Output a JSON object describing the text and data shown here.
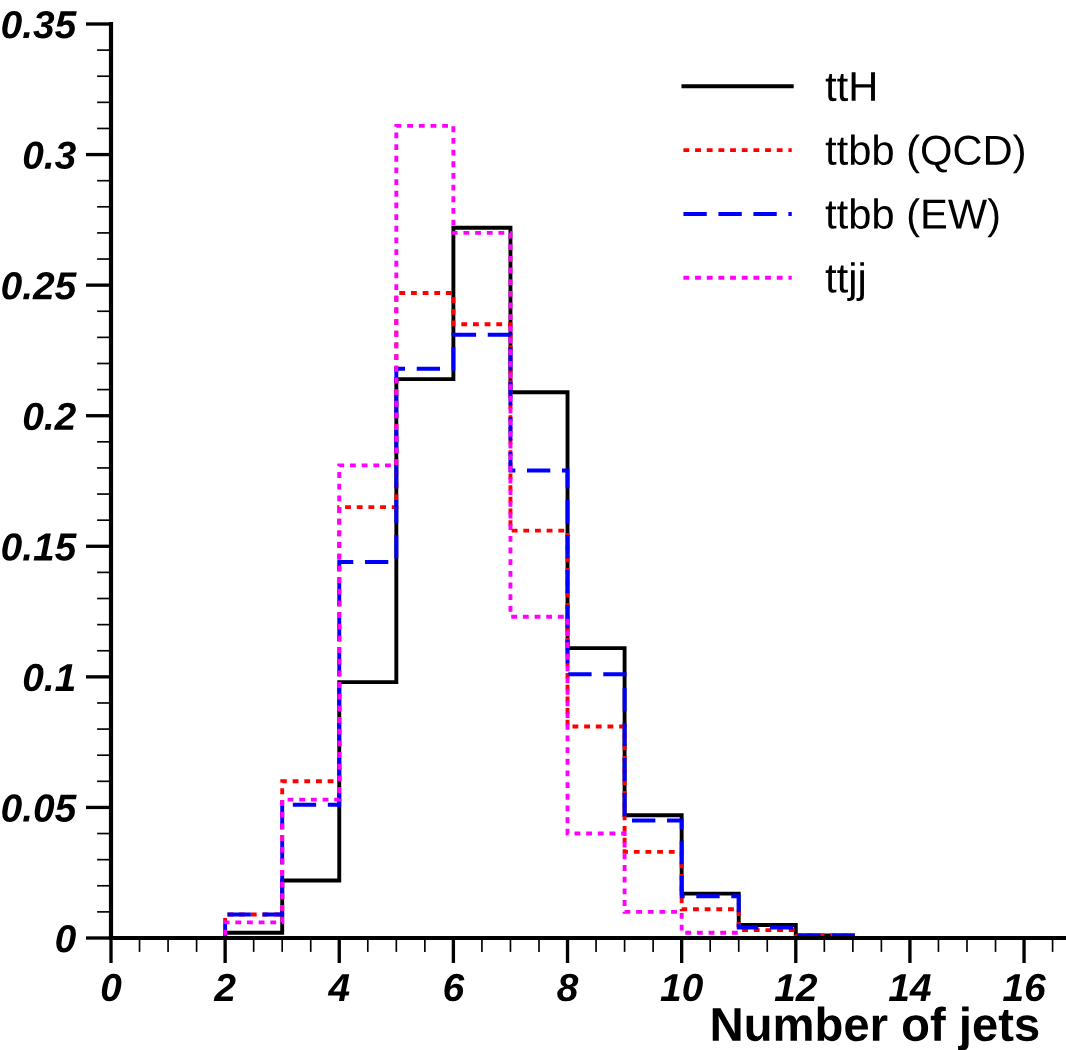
{
  "chart_data": {
    "type": "histogram",
    "xlabel": "Number of jets",
    "bins": [
      0,
      1,
      2,
      3,
      4,
      5,
      6,
      7,
      8,
      9,
      10,
      11,
      12,
      13,
      14,
      15,
      16
    ],
    "series": [
      {
        "name": "ttH",
        "color": "#000000",
        "line_style": "solid",
        "values": [
          0,
          0,
          0.002,
          0.022,
          0.098,
          0.214,
          0.272,
          0.209,
          0.111,
          0.047,
          0.017,
          0.005,
          0.001,
          0,
          0,
          0
        ]
      },
      {
        "name": "ttbb (QCD)",
        "color": "#ff0000",
        "line_style": "dotted",
        "values": [
          0,
          0,
          0.009,
          0.06,
          0.165,
          0.247,
          0.235,
          0.156,
          0.081,
          0.033,
          0.011,
          0.003,
          0.001,
          0,
          0,
          0
        ]
      },
      {
        "name": "ttbb (EW)",
        "color": "#0000ff",
        "line_style": "dashed",
        "values": [
          0,
          0,
          0.009,
          0.051,
          0.144,
          0.218,
          0.231,
          0.179,
          0.101,
          0.045,
          0.016,
          0.004,
          0.001,
          0,
          0,
          0
        ]
      },
      {
        "name": "ttjj",
        "color": "#ff00ff",
        "line_style": "dotted",
        "values": [
          0,
          0,
          0.006,
          0.053,
          0.181,
          0.311,
          0.27,
          0.123,
          0.04,
          0.01,
          0.002,
          0,
          0,
          0,
          0,
          0
        ]
      }
    ],
    "xlim": [
      0,
      16.7
    ],
    "ylim": [
      0,
      0.35
    ],
    "xticks": [
      0,
      2,
      4,
      6,
      8,
      10,
      12,
      14,
      16
    ],
    "yticks": [
      0,
      0.05,
      0.1,
      0.15,
      0.2,
      0.25,
      0.3,
      0.35
    ],
    "legend": "top right",
    "grid": false
  }
}
